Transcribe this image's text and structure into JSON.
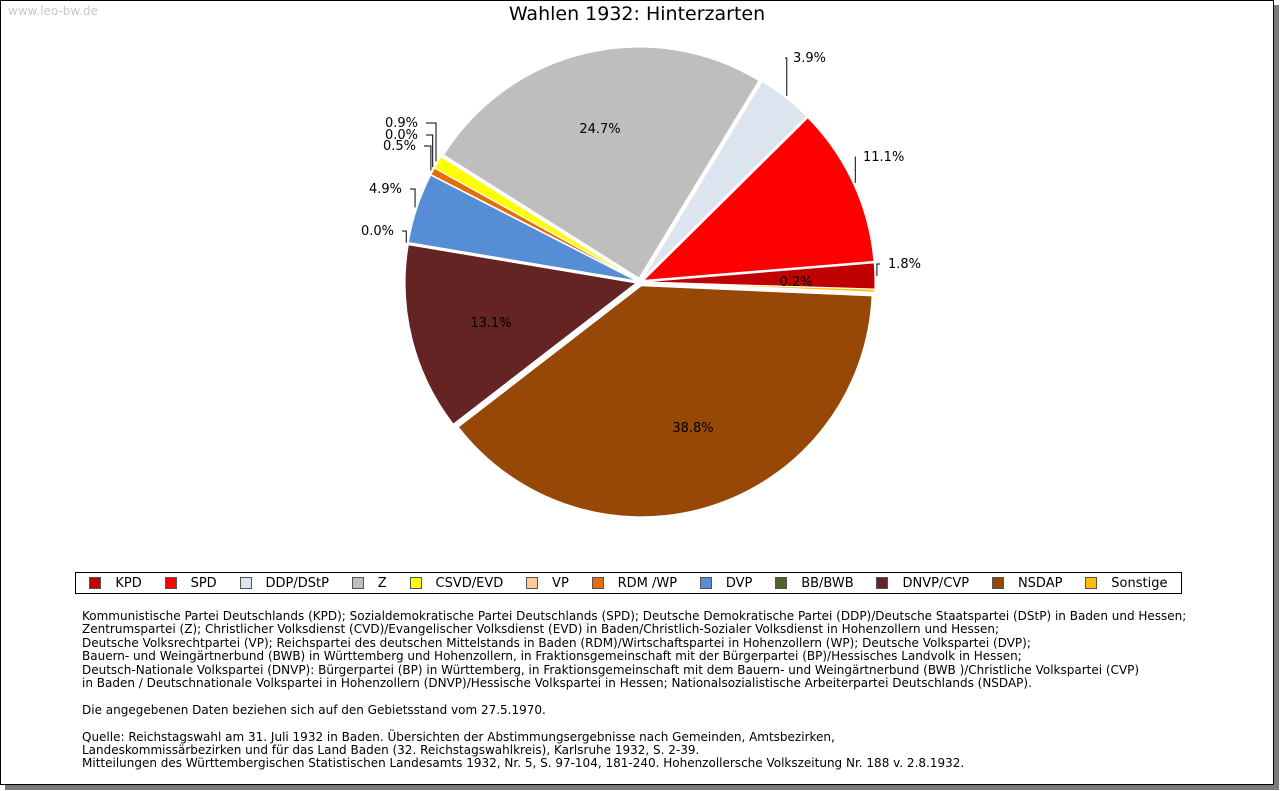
{
  "watermark": "www.leo-bw.de",
  "chart_data": {
    "type": "pie",
    "title": "Wahlen 1932: Hinterzarten",
    "slices": [
      {
        "label": "KPD",
        "value": 1.8,
        "label_text": "1.8%",
        "color": "#c00000"
      },
      {
        "label": "SPD",
        "value": 11.1,
        "label_text": "11.1%",
        "color": "#ff0000"
      },
      {
        "label": "DDP/DStP",
        "value": 3.9,
        "label_text": "3.9%",
        "color": "#dce4f0"
      },
      {
        "label": "Z",
        "value": 24.7,
        "label_text": "24.7%",
        "color": "#bebebe"
      },
      {
        "label": "CSVD/EVD",
        "value": 0.9,
        "label_text": "0.9%",
        "color": "#ffff00"
      },
      {
        "label": "VP",
        "value": 0.0,
        "label_text": "0.0%",
        "color": "#ffcc99"
      },
      {
        "label": "RDM /WP",
        "value": 0.5,
        "label_text": "0.5%",
        "color": "#e46c0a"
      },
      {
        "label": "DVP",
        "value": 4.9,
        "label_text": "4.9%",
        "color": "#558ed5"
      },
      {
        "label": "BB/BWB",
        "value": 0.0,
        "label_text": "0.0%",
        "color": "#4f6228"
      },
      {
        "label": "DNVP/CVP",
        "value": 13.1,
        "label_text": "13.1%",
        "color": "#632423"
      },
      {
        "label": "NSDAP",
        "value": 38.8,
        "label_text": "38.8%",
        "color": "#974706"
      },
      {
        "label": "Sonstige",
        "value": 0.2,
        "label_text": "0.2%",
        "color": "#ffc000"
      }
    ],
    "legend_placement": "bottom"
  },
  "notes": {
    "party_lines": [
      "Kommunistische Partei Deutschlands (KPD); Sozialdemokratische Partei Deutschlands (SPD); Deutsche Demokratische Partei (DDP)/Deutsche Staatspartei (DStP) in Baden und Hessen;",
      "Zentrumspartei (Z); Christlicher Volksdienst (CVD)/Evangelischer Volksdienst (EVD) in Baden/Christlich-Sozialer Volksdienst in Hohenzollern und Hessen;",
      "Deutsche Volksrechtpartei (VP); Reichspartei des deutschen Mittelstands in Baden (RDM)/Wirtschaftspartei in Hohenzollern (WP); Deutsche Volkspartei (DVP);",
      "Bauern- und Weingärtnerbund (BWB) in Württemberg und Hohenzollern, in Fraktionsgemeinschaft mit der Bürgerpartei (BP)/Hessisches Landvolk in Hessen;",
      "Deutsch-Nationale Volkspartei (DNVP): Bürgerpartei (BP) in Württemberg, in Fraktionsgemeinschaft mit dem Bauern- und Weingärtnerbund (BWB )/Christliche Volkspartei (CVP)",
      "in Baden / Deutschnationale Volkspartei in Hohenzollern (DNVP)/Hessische Volkspartei in Hessen; Nationalsozialistische Arbeiterpartei Deutschlands (NSDAP)."
    ],
    "territory_line": "Die angegebenen Daten beziehen sich auf den Gebietsstand vom 27.5.1970.",
    "source_lines": [
      "Quelle: Reichstagswahl am 31. Juli 1932 in Baden. Übersichten der Abstimmungsergebnisse nach Gemeinden, Amtsbezirken,",
      "Landeskommissärbezirken und für das Land Baden (32. Reichstagswahlkreis), Karlsruhe 1932, S. 2-39.",
      "Mitteilungen des Württembergischen Statistischen Landesamts 1932, Nr. 5, S. 97-104, 181-240. Hohenzollersche Volkszeitung Nr. 188 v. 2.8.1932."
    ]
  }
}
